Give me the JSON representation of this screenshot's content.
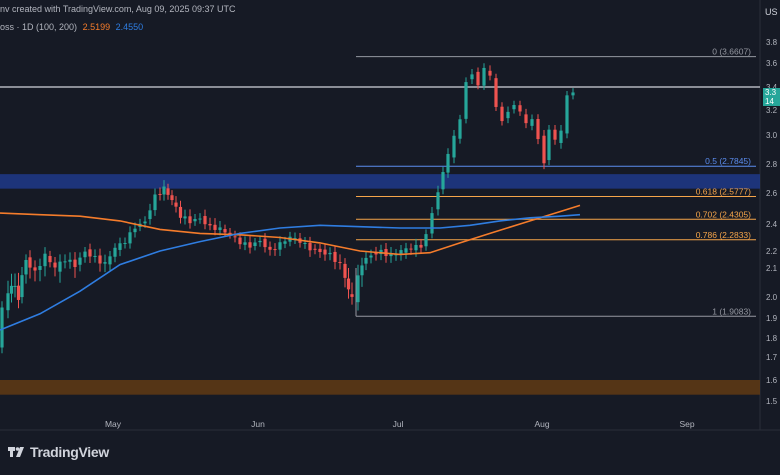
{
  "header": {
    "credit": "nv created with TradingView.com, Aug 09, 2025 09:37 UTC",
    "indicator_prefix": "oss · 1D (100, 200)",
    "ma100_value": "2.5199",
    "ma200_value": "2.4550",
    "currency_badge": "US"
  },
  "current_price_tag": {
    "line1": "3.3",
    "line2": "14"
  },
  "brand": {
    "name": "TradingView"
  },
  "colors": {
    "background": "#161a25",
    "up": "#26a69a",
    "down": "#ef5350",
    "ma100": "#f57c2b",
    "ma200": "#2f7de1",
    "resistance_zone": "#1e3a8a",
    "support_zone": "#5c3815",
    "fib_gray": "#9598a1",
    "fib_blue": "#5b8def",
    "fib_orange": "#f6a54a"
  },
  "chart_data": {
    "type": "candlestick",
    "x_ticks": [
      "May",
      "Jun",
      "Jul",
      "Aug",
      "Sep"
    ],
    "y_ticks": [
      "3.8",
      "3.6",
      "3.4",
      "3.2",
      "3.0",
      "2.8",
      "2.6",
      "2.4",
      "2.2",
      "2.1",
      "2.0",
      "1.9",
      "1.8",
      "1.7",
      "1.6",
      "1.5"
    ],
    "y_range": [
      1.5,
      3.85
    ],
    "moving_averages": [
      {
        "name": "MA 100",
        "value": 2.5199
      },
      {
        "name": "MA 200",
        "value": 2.455
      }
    ],
    "fibonacci_levels": [
      {
        "ratio": "0",
        "price": 3.6607,
        "label": "0 (3.6607)"
      },
      {
        "ratio": "0.5",
        "price": 2.7845,
        "label": "0.5 (2.7845)"
      },
      {
        "ratio": "0.618",
        "price": 2.5777,
        "label": "0.618 (2.5777)"
      },
      {
        "ratio": "0.702",
        "price": 2.4305,
        "label": "0.702 (2.4305)"
      },
      {
        "ratio": "0.786",
        "price": 2.2833,
        "label": "0.786 (2.2833)"
      },
      {
        "ratio": "1",
        "price": 1.9083,
        "label": "1 (1.9083)"
      }
    ],
    "horizontal_line": 3.4,
    "zones": [
      {
        "name": "resistance",
        "low": 2.63,
        "high": 2.73
      },
      {
        "name": "support",
        "low": 1.53,
        "high": 1.6
      }
    ]
  }
}
